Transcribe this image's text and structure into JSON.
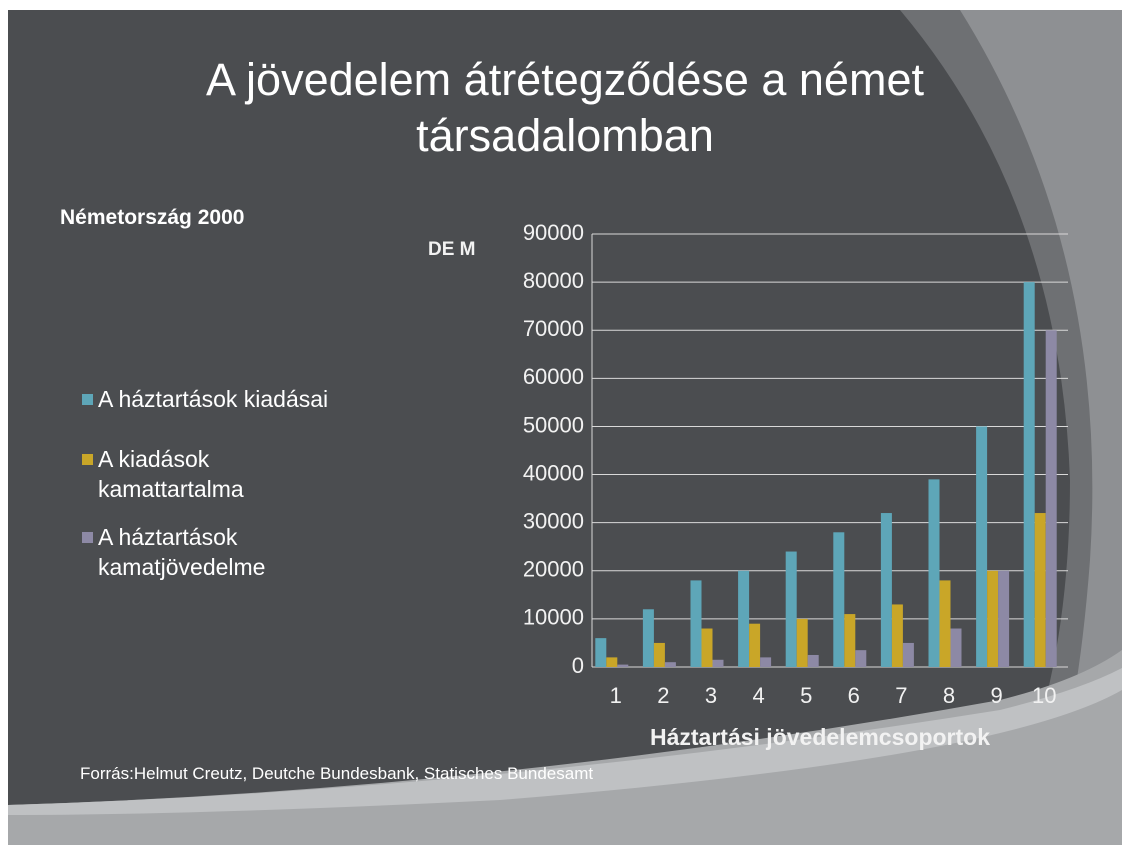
{
  "chart_data": {
    "type": "bar",
    "title": "A jövedelem átrétegződése a német társadalomban",
    "subtitle": "Németország 2000",
    "y_label": "DE M",
    "x_label": "Háztartási jövedelemcsoportok",
    "source": "Forrás:Helmut Creutz, Deutche Bundesbank, Statisches Bundesamt",
    "categories": [
      "1",
      "2",
      "3",
      "4",
      "5",
      "6",
      "7",
      "8",
      "9",
      "10"
    ],
    "series": [
      {
        "name": "A háztartások kiadásai",
        "color": "#5ea6b8",
        "values": [
          6000,
          12000,
          18000,
          20000,
          24000,
          28000,
          32000,
          39000,
          50000,
          80000
        ]
      },
      {
        "name": "A kiadások kamattartalma",
        "color": "#c9a628",
        "values": [
          2000,
          5000,
          8000,
          9000,
          10000,
          11000,
          13000,
          18000,
          20000,
          32000
        ]
      },
      {
        "name": "A háztartások kamatjövedelme",
        "color": "#8d89a5",
        "values": [
          500,
          1000,
          1500,
          2000,
          2500,
          3500,
          5000,
          8000,
          20000,
          70000
        ]
      }
    ],
    "ylim": [
      0,
      90000
    ],
    "yticks": [
      0,
      10000,
      20000,
      30000,
      40000,
      50000,
      60000,
      70000,
      80000,
      90000
    ],
    "grid": true,
    "legend": "left"
  }
}
